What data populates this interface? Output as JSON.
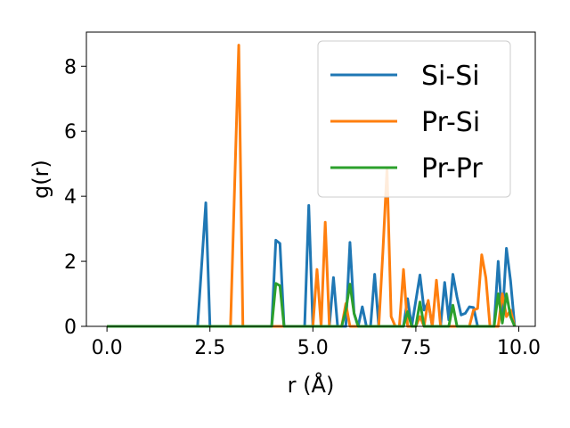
{
  "chart_data": {
    "type": "line",
    "xlabel": "r (Å)",
    "ylabel": "g(r)",
    "xlim": [
      -0.5,
      10.4
    ],
    "ylim": [
      0,
      9.05
    ],
    "xticks": [
      0.0,
      2.5,
      5.0,
      7.5,
      10.0
    ],
    "xtick_labels": [
      "0.0",
      "2.5",
      "5.0",
      "7.5",
      "10.0"
    ],
    "yticks": [
      0,
      2,
      4,
      6,
      8
    ],
    "ytick_labels": [
      "0",
      "2",
      "4",
      "6",
      "8"
    ],
    "grid": false,
    "legend_position": "upper-right",
    "series": [
      {
        "name": "Si-Si",
        "color": "#1f77b4",
        "points": [
          [
            0.0,
            0
          ],
          [
            2.2,
            0
          ],
          [
            2.4,
            3.8
          ],
          [
            2.5,
            0
          ],
          [
            4.0,
            0
          ],
          [
            4.1,
            2.65
          ],
          [
            4.2,
            2.55
          ],
          [
            4.3,
            0
          ],
          [
            4.8,
            0
          ],
          [
            4.9,
            3.72
          ],
          [
            5.0,
            0
          ],
          [
            5.4,
            0
          ],
          [
            5.5,
            1.5
          ],
          [
            5.6,
            0
          ],
          [
            5.8,
            0
          ],
          [
            5.9,
            2.58
          ],
          [
            6.0,
            0.4
          ],
          [
            6.1,
            0
          ],
          [
            6.2,
            0.6
          ],
          [
            6.3,
            0
          ],
          [
            6.4,
            0
          ],
          [
            6.5,
            1.6
          ],
          [
            6.6,
            0
          ],
          [
            7.2,
            0
          ],
          [
            7.3,
            0.85
          ],
          [
            7.4,
            0
          ],
          [
            7.6,
            1.58
          ],
          [
            7.7,
            0.5
          ],
          [
            7.8,
            0.75
          ],
          [
            7.9,
            0
          ],
          [
            8.1,
            0
          ],
          [
            8.2,
            1.35
          ],
          [
            8.3,
            0.2
          ],
          [
            8.4,
            1.6
          ],
          [
            8.5,
            0.9
          ],
          [
            8.6,
            0.35
          ],
          [
            8.7,
            0.4
          ],
          [
            8.8,
            0.6
          ],
          [
            8.9,
            0.58
          ],
          [
            9.0,
            0
          ],
          [
            9.4,
            0
          ],
          [
            9.5,
            2.0
          ],
          [
            9.6,
            0.2
          ],
          [
            9.7,
            2.4
          ],
          [
            9.8,
            1.4
          ],
          [
            9.9,
            0
          ]
        ]
      },
      {
        "name": "Pr-Si",
        "color": "#ff7f0e",
        "points": [
          [
            0.0,
            0
          ],
          [
            3.0,
            0
          ],
          [
            3.2,
            8.65
          ],
          [
            3.3,
            0
          ],
          [
            5.0,
            0
          ],
          [
            5.1,
            1.75
          ],
          [
            5.2,
            0
          ],
          [
            5.3,
            3.2
          ],
          [
            5.4,
            0
          ],
          [
            5.6,
            0
          ],
          [
            5.7,
            0
          ],
          [
            5.8,
            0.7
          ],
          [
            5.9,
            0
          ],
          [
            6.6,
            0
          ],
          [
            6.7,
            2.3
          ],
          [
            6.8,
            4.85
          ],
          [
            6.9,
            0.3
          ],
          [
            7.0,
            0
          ],
          [
            7.1,
            0
          ],
          [
            7.2,
            1.75
          ],
          [
            7.3,
            0
          ],
          [
            7.5,
            0
          ],
          [
            7.6,
            0.3
          ],
          [
            7.7,
            0
          ],
          [
            7.8,
            0.8
          ],
          [
            7.9,
            0
          ],
          [
            8.0,
            1.42
          ],
          [
            8.1,
            0
          ],
          [
            8.8,
            0
          ],
          [
            8.9,
            0.5
          ],
          [
            9.0,
            0.55
          ],
          [
            9.1,
            2.2
          ],
          [
            9.2,
            1.5
          ],
          [
            9.3,
            0
          ],
          [
            9.5,
            0
          ],
          [
            9.6,
            1.0
          ],
          [
            9.7,
            0.3
          ],
          [
            9.8,
            0.5
          ],
          [
            9.9,
            0
          ]
        ]
      },
      {
        "name": "Pr-Pr",
        "color": "#2ca02c",
        "points": [
          [
            0.0,
            0
          ],
          [
            4.0,
            0
          ],
          [
            4.1,
            1.32
          ],
          [
            4.2,
            1.25
          ],
          [
            4.3,
            0
          ],
          [
            5.7,
            0
          ],
          [
            5.8,
            0.5
          ],
          [
            5.9,
            1.3
          ],
          [
            6.0,
            0.4
          ],
          [
            6.1,
            0
          ],
          [
            7.2,
            0
          ],
          [
            7.3,
            0.45
          ],
          [
            7.4,
            0
          ],
          [
            7.5,
            0
          ],
          [
            7.6,
            0.75
          ],
          [
            7.7,
            0
          ],
          [
            8.3,
            0
          ],
          [
            8.4,
            0.65
          ],
          [
            8.5,
            0
          ],
          [
            9.4,
            0
          ],
          [
            9.5,
            1.0
          ],
          [
            9.6,
            0.1
          ],
          [
            9.7,
            1.0
          ],
          [
            9.8,
            0.3
          ],
          [
            9.9,
            0
          ]
        ]
      }
    ]
  }
}
